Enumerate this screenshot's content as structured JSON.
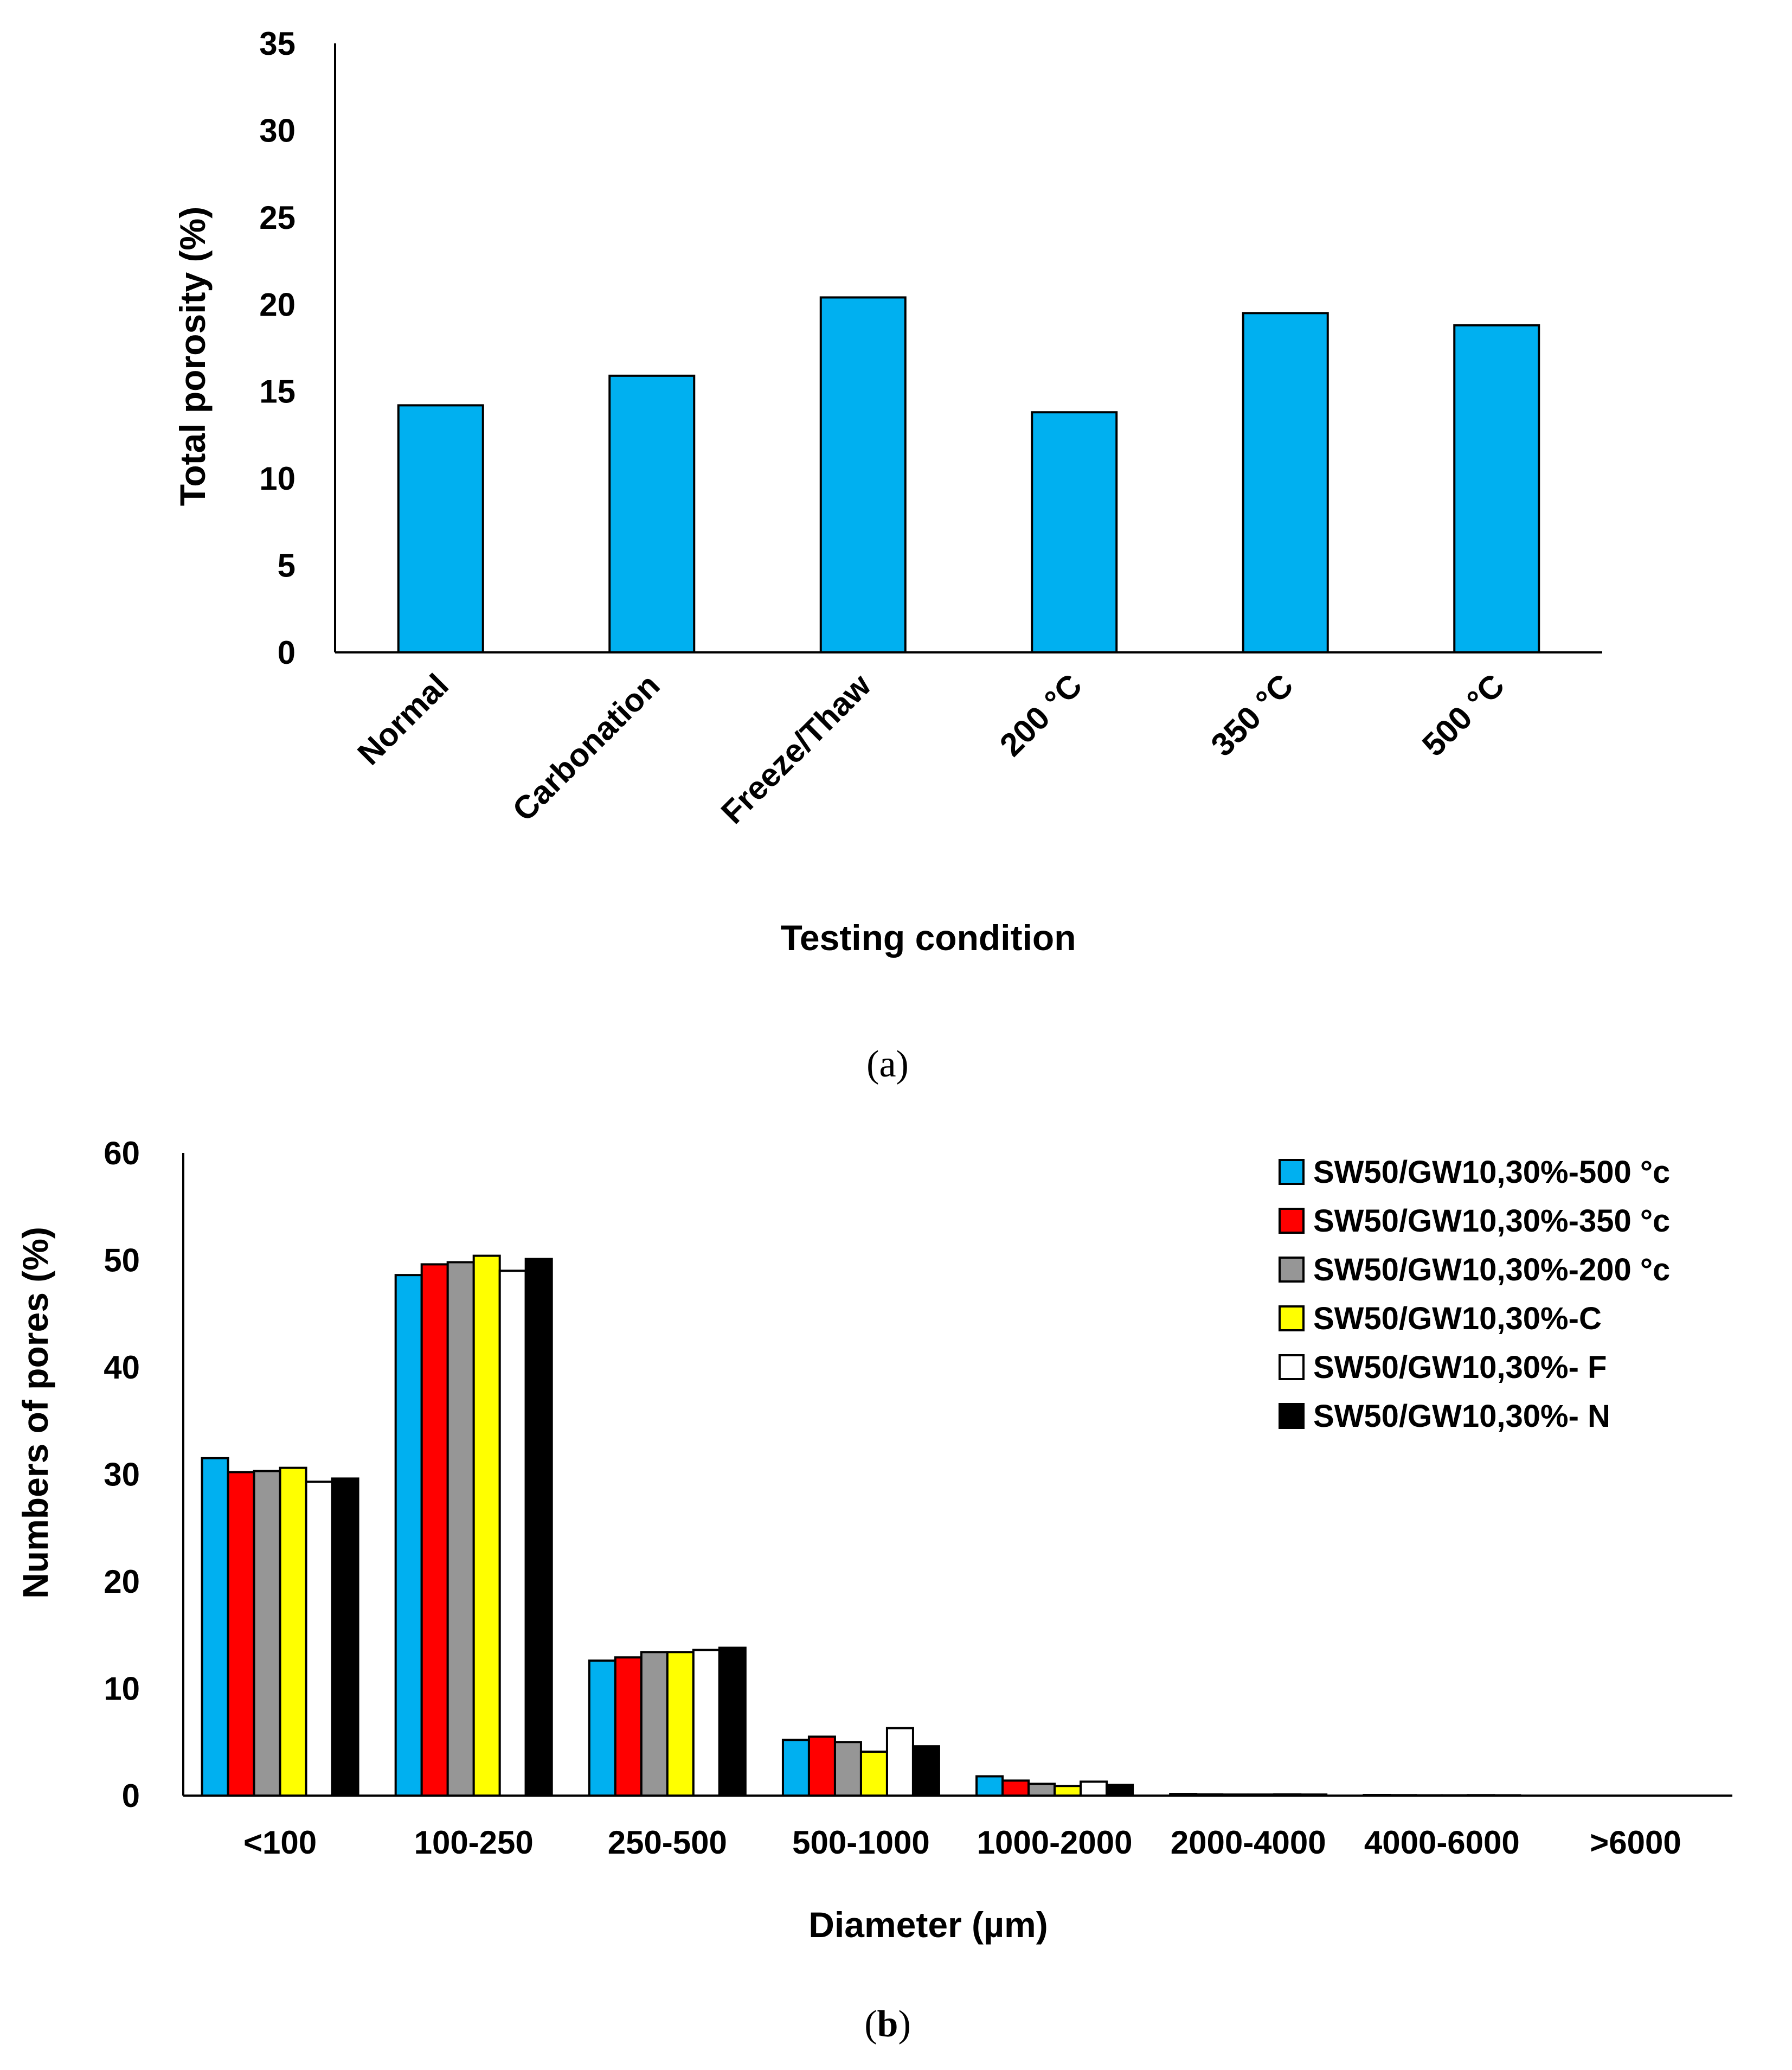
{
  "chart_data": [
    {
      "type": "bar",
      "panel": "a",
      "caption": "(a)",
      "caption_open": "(",
      "caption_letter": "a",
      "caption_close": ")",
      "categories": [
        "Normal",
        "Carbonation",
        "Freeze/Thaw",
        "200 °C",
        "350 °C",
        "500 °C"
      ],
      "values": [
        14.2,
        15.9,
        20.4,
        13.8,
        19.5,
        18.8
      ],
      "xlabel": "Testing condition",
      "ylabel": "Total porosity (%)",
      "ylim": [
        0,
        35
      ],
      "yticks": [
        "0",
        "5",
        "10",
        "15",
        "20",
        "25",
        "30",
        "35"
      ],
      "color": "#00B0F0",
      "grid": false
    },
    {
      "type": "bar",
      "panel": "b",
      "caption": "(b)",
      "caption_open": "(",
      "caption_letter": "b",
      "caption_close": ")",
      "categories": [
        "<100",
        "100-250",
        "250-500",
        "500-1000",
        "1000-2000",
        "2000-4000",
        "4000-6000",
        ">6000"
      ],
      "series": [
        {
          "name": "SW50/GW10,30%-500 °c",
          "color": "#00B0F0",
          "values": [
            31.5,
            48.6,
            12.6,
            5.2,
            1.8,
            0.15,
            0.05,
            0
          ]
        },
        {
          "name": "SW50/GW10,30%-350 °c",
          "color": "#FF0000",
          "values": [
            30.2,
            49.6,
            12.9,
            5.5,
            1.4,
            0.12,
            0.04,
            0
          ]
        },
        {
          "name": "SW50/GW10,30%-200 °c",
          "color": "#969696",
          "values": [
            30.3,
            49.8,
            13.4,
            5.0,
            1.1,
            0.1,
            0.03,
            0
          ]
        },
        {
          "name": "SW50/GW10,30%-C",
          "color": "#FFFF00",
          "values": [
            30.6,
            50.4,
            13.4,
            4.1,
            0.9,
            0.1,
            0.03,
            0
          ]
        },
        {
          "name": "SW50/GW10,30%- F",
          "color": "#FFFFFF",
          "values": [
            29.3,
            49.0,
            13.6,
            6.3,
            1.3,
            0.12,
            0.04,
            0
          ]
        },
        {
          "name": "SW50/GW10,30%- N",
          "color": "#000000",
          "values": [
            29.6,
            50.1,
            13.8,
            4.6,
            1.0,
            0.1,
            0.03,
            0
          ]
        }
      ],
      "xlabel": "Diameter (µm)",
      "ylabel": "Numbers of pores (%)",
      "ylim": [
        0,
        60
      ],
      "yticks": [
        "0",
        "10",
        "20",
        "30",
        "40",
        "50",
        "60"
      ],
      "legend_position": "top-right",
      "grid": false
    }
  ]
}
